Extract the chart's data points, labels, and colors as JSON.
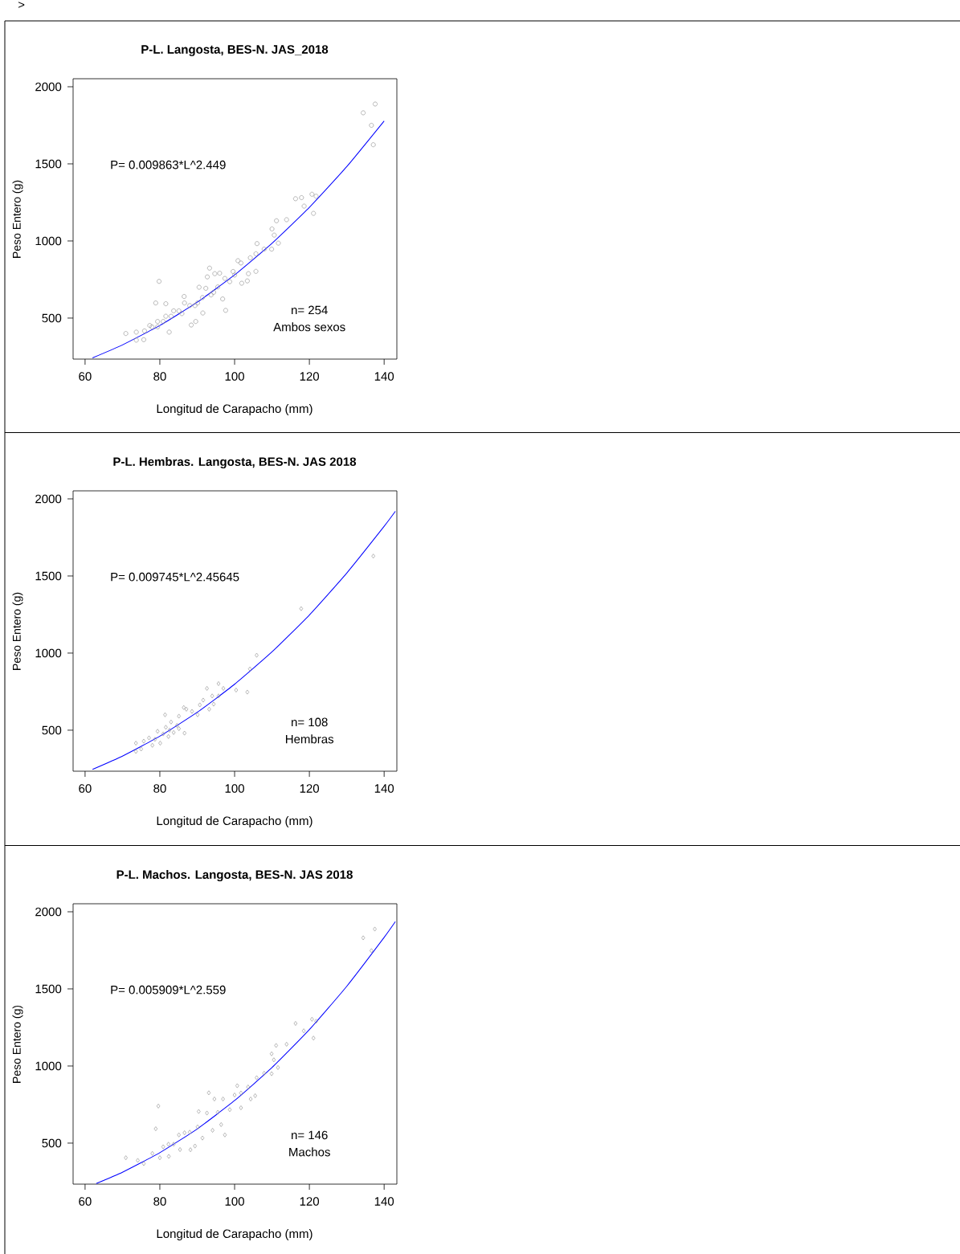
{
  "chart_data": [
    {
      "type": "scatter",
      "title": "P-L. Langosta, BES-N. JAS_2018",
      "xlabel": "Longitud de Carapacho (mm)",
      "ylabel": "Peso Entero (g)",
      "xlim": [
        56.8,
        143.4
      ],
      "ylim": [
        234,
        2052
      ],
      "xticks": [
        60,
        80,
        100,
        120,
        140
      ],
      "yticks": [
        500,
        1000,
        1500,
        2000
      ],
      "annotations": [
        "P= 0.009863*L^2.449",
        "n= 254",
        "Ambos sexos",
        ">"
      ],
      "series": [
        {
          "color": "#999999",
          "marker": "circle",
          "x": [
            137.6,
            134.4,
            136.6,
            137.1,
            120.7,
            121.8,
            117.9,
            116.3,
            118.6,
            121.1,
            111.2,
            113.9,
            110.0,
            110.6,
            111.7,
            109.9,
            106.0,
            107.9,
            105.7,
            104.2,
            101.7,
            100.9,
            105.7,
            103.7,
            101.9,
            103.4,
            99.6,
            97.4,
            97.6,
            96.8,
            93.3,
            94.7,
            96.0,
            92.7,
            94.4,
            90.5,
            92.3,
            91.4,
            91.5,
            89.6,
            88.4,
            86.5,
            86.6,
            81.6,
            79.8,
            78.9,
            83.7,
            82.5,
            79.4,
            77.9,
            73.7,
            70.9,
            73.7,
            75.7,
            77.3,
            81.6,
            85.1,
            88.0,
            90.1,
            93.7,
            95.5,
            98.7,
            100.0,
            80.9,
            83.0,
            85.9,
            89.4,
            75.9,
            79.4
          ],
          "values": [
            1888,
            1831,
            1750,
            1624,
            1303,
            1290,
            1281,
            1274,
            1226,
            1179,
            1131,
            1138,
            1078,
            1038,
            986,
            947,
            983,
            947,
            917,
            891,
            857,
            872,
            803,
            788,
            726,
            741,
            802,
            757,
            550,
            624,
            824,
            788,
            791,
            767,
            667,
            700,
            693,
            633,
            533,
            478,
            455,
            640,
            598,
            593,
            738,
            598,
            547,
            409,
            478,
            443,
            409,
            400,
            357,
            360,
            452,
            512,
            547,
            581,
            598,
            650,
            702,
            736,
            779,
            478,
            512,
            529,
            581,
            417,
            443
          ]
        },
        {
          "type": "line",
          "color": "#0000ff",
          "marker": "none",
          "x": [
            62,
            70,
            80,
            90,
            100,
            110,
            120,
            130,
            140
          ],
          "values": [
            242,
            326,
            452,
            603,
            780,
            985,
            1218,
            1482,
            1778
          ]
        }
      ]
    },
    {
      "type": "scatter",
      "title": "P-L. Hembras. Langosta, BES-N. JAS 2018",
      "xlabel": "Longitud de Carapacho (mm)",
      "ylabel": "Peso Entero (g)",
      "xlim": [
        56.8,
        143.4
      ],
      "ylim": [
        234,
        2052
      ],
      "xticks": [
        60,
        80,
        100,
        120,
        140
      ],
      "yticks": [
        500,
        1000,
        1500,
        2000
      ],
      "annotations": [
        "P= 0.009745*L^2.45645",
        "n= 108",
        "Hembras"
      ],
      "series": [
        {
          "color": "#999999",
          "marker": "diamond",
          "x": [
            137.1,
            117.8,
            105.9,
            104.1,
            95.7,
            92.6,
            97.0,
            100.4,
            103.4,
            94.0,
            95.7,
            91.6,
            90.7,
            94.4,
            86.4,
            87.1,
            93.2,
            88.6,
            90.1,
            81.4,
            85.1,
            83.0,
            86.6,
            78.0,
            73.6,
            73.6,
            75.0,
            75.7,
            77.1,
            80.1,
            82.3,
            83.7,
            79.4,
            80.9,
            85.1,
            81.6,
            78.7,
            84.6,
            82.6
          ],
          "values": [
            1629,
            1288,
            986,
            897,
            802,
            771,
            771,
            760,
            747,
            722,
            722,
            695,
            664,
            669,
            647,
            636,
            636,
            622,
            600,
            600,
            591,
            553,
            481,
            402,
            416,
            362,
            378,
            429,
            450,
            416,
            459,
            485,
            493,
            476,
            510,
            519,
            441,
            531,
            500
          ]
        },
        {
          "type": "line",
          "color": "#0000ff",
          "marker": "none",
          "x": [
            62,
            70,
            80,
            90,
            100,
            110,
            120,
            130,
            140,
            143
          ],
          "values": [
            246,
            332,
            461,
            616,
            798,
            1008,
            1247,
            1519,
            1822,
            1919
          ]
        }
      ]
    },
    {
      "type": "scatter",
      "title": "P-L. Machos. Langosta, BES-N. JAS 2018",
      "xlabel": "Longitud de Carapacho (mm)",
      "ylabel": "Peso Entero (g)",
      "xlim": [
        56.8,
        143.4
      ],
      "ylim": [
        234,
        2052
      ],
      "xticks": [
        60,
        80,
        100,
        120,
        140
      ],
      "yticks": [
        500,
        1000,
        1500,
        2000
      ],
      "annotations": [
        "P= 0.005909*L^2.559",
        "n= 146",
        "Machos"
      ],
      "series": [
        {
          "color": "#999999",
          "marker": "diamond",
          "x": [
            137.5,
            134.4,
            136.6,
            120.7,
            121.8,
            116.3,
            118.5,
            121.1,
            111.1,
            113.9,
            109.9,
            110.5,
            111.6,
            109.9,
            105.9,
            107.9,
            103.6,
            100.7,
            105.5,
            104.3,
            101.7,
            93.1,
            94.6,
            96.9,
            90.4,
            92.6,
            94.1,
            97.4,
            96.4,
            89.4,
            88.2,
            79.6,
            78.9,
            86.6,
            91.4,
            82.4,
            80.0,
            70.9,
            74.1,
            75.7,
            78.0,
            80.9,
            83.7,
            85.1,
            88.0,
            90.1,
            95.5,
            98.7,
            100.0,
            101.7,
            85.4,
            82.3
          ],
          "values": [
            1888,
            1831,
            1748,
            1303,
            1290,
            1276,
            1228,
            1181,
            1133,
            1141,
            1079,
            1040,
            990,
            950,
            924,
            953,
            864,
            872,
            807,
            786,
            729,
            826,
            786,
            786,
            705,
            695,
            583,
            553,
            620,
            481,
            457,
            740,
            593,
            567,
            533,
            414,
            405,
            405,
            388,
            367,
            433,
            476,
            493,
            553,
            571,
            605,
            700,
            717,
            812,
            825,
            458,
            493
          ]
        },
        {
          "type": "line",
          "color": "#0000ff",
          "marker": "none",
          "x": [
            63,
            70,
            80,
            90,
            100,
            110,
            120,
            130,
            140,
            143
          ],
          "values": [
            238,
            311,
            438,
            592,
            776,
            990,
            1236,
            1517,
            1834,
            1936
          ]
        }
      ]
    }
  ]
}
